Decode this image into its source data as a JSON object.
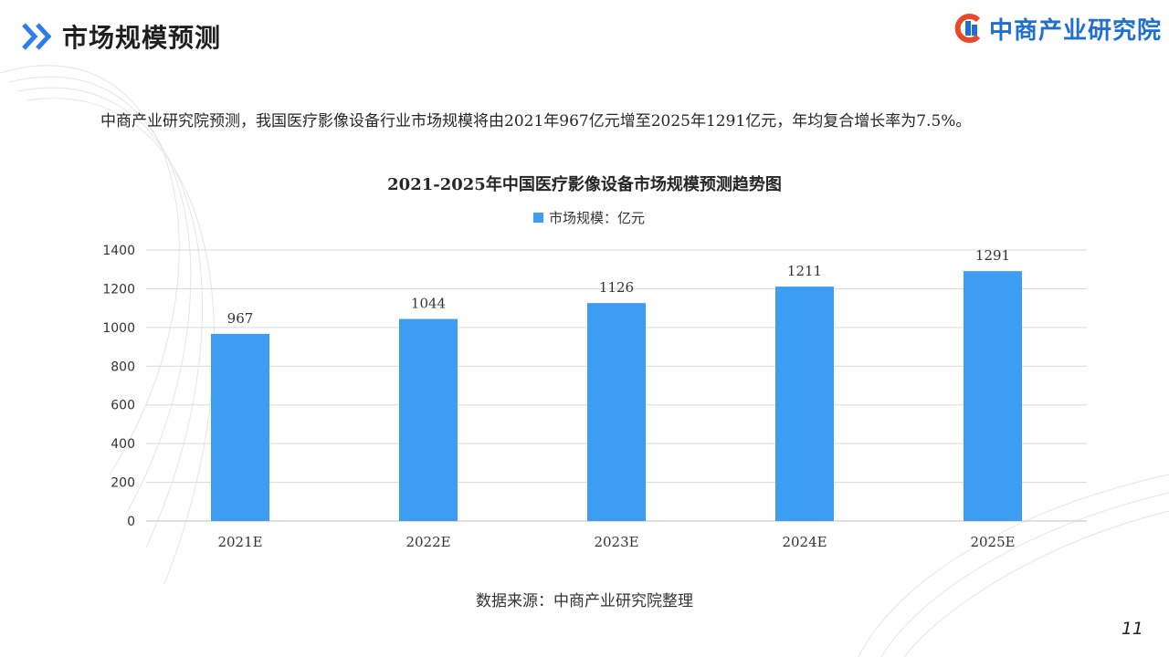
{
  "header": {
    "page_title": "市场规模预测",
    "brand_name": "中商产业研究院"
  },
  "summary_text": "中商产业研究院预测，我国医疗影像设备行业市场规模将由2021年967亿元增至2025年1291亿元，年均复合增长率为7.5%。",
  "footer": {
    "source": "数据来源：中商产业研究院整理",
    "page_number": "11"
  },
  "colors": {
    "bar": "#3d9df2",
    "brand": "#1d6fd0",
    "chevron": "#2b7de9"
  },
  "chart_data": {
    "type": "bar",
    "title": "2021-2025年中国医疗影像设备市场规模预测趋势图",
    "categories": [
      "2021E",
      "2022E",
      "2023E",
      "2024E",
      "2025E"
    ],
    "series": [
      {
        "name": "市场规模：亿元",
        "values": [
          967,
          1044,
          1126,
          1211,
          1291
        ]
      }
    ],
    "ylim": [
      0,
      1400
    ],
    "yticks": [
      0,
      200,
      400,
      600,
      800,
      1000,
      1200,
      1400
    ],
    "grid": true,
    "legend": "top-center",
    "data_labels": true
  }
}
